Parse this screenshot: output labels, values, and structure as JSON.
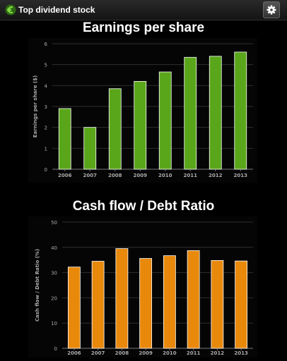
{
  "app": {
    "title": "Top dividend stock",
    "logo_icon": "euro-icon",
    "settings_icon": "gear-icon"
  },
  "chart_data": [
    {
      "type": "bar",
      "title": "Earnings per share",
      "ylabel": "Earnings per share ($)",
      "xlabel": "",
      "categories": [
        "2006",
        "2007",
        "2008",
        "2009",
        "2010",
        "2011",
        "2012",
        "2013"
      ],
      "values": [
        2.9,
        2.0,
        3.85,
        4.2,
        4.65,
        5.35,
        5.4,
        5.6
      ],
      "ylim": [
        0,
        6
      ],
      "yticks": [
        0,
        1,
        2,
        3,
        4,
        5,
        6
      ],
      "grid": true,
      "color": "#5aa61a"
    },
    {
      "type": "bar",
      "title": "Cash flow / Debt Ratio",
      "ylabel": "Cash flow / Debt Ratio (%)",
      "xlabel": "",
      "categories": [
        "2006",
        "2007",
        "2008",
        "2009",
        "2010",
        "2011",
        "2012",
        "2013"
      ],
      "values": [
        32.2,
        34.5,
        39.5,
        35.6,
        36.7,
        38.7,
        34.8,
        34.6
      ],
      "ylim": [
        0,
        50
      ],
      "yticks": [
        0,
        10,
        20,
        30,
        40,
        50
      ],
      "grid": true,
      "color": "#e8890c"
    }
  ]
}
